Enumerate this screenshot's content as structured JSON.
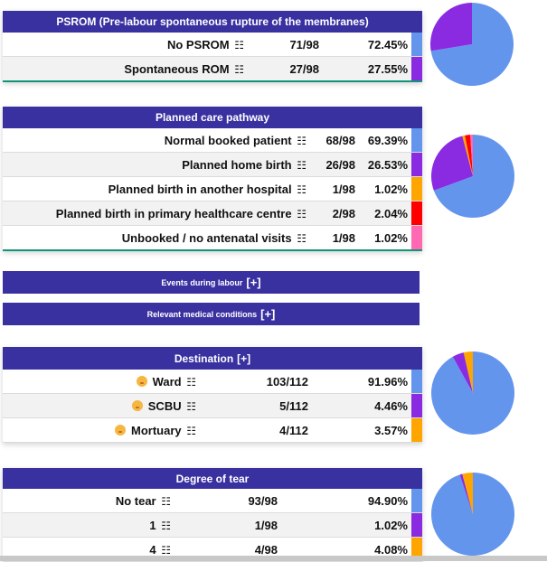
{
  "sections": {
    "psrom": {
      "title": "PSROM (Pre-labour spontaneous rupture of the membranes)",
      "rows": [
        {
          "label": "No PSROM",
          "count": "71/98",
          "percent": "72.45%",
          "color": "#6495ed",
          "value": 72.45
        },
        {
          "label": "Spontaneous ROM",
          "count": "27/98",
          "percent": "27.55%",
          "color": "#8a2be2",
          "value": 27.55
        }
      ]
    },
    "care_pathway": {
      "title": "Planned care pathway",
      "rows": [
        {
          "label": "Normal booked patient",
          "count": "68/98",
          "percent": "69.39%",
          "color": "#6495ed",
          "value": 69.39
        },
        {
          "label": "Planned home birth",
          "count": "26/98",
          "percent": "26.53%",
          "color": "#8a2be2",
          "value": 26.53
        },
        {
          "label": "Planned birth in another hospital",
          "count": "1/98",
          "percent": "1.02%",
          "color": "#ffa500",
          "value": 1.02
        },
        {
          "label": "Planned birth in primary healthcare centre",
          "count": "2/98",
          "percent": "2.04%",
          "color": "#ff0000",
          "value": 2.04
        },
        {
          "label": "Unbooked / no antenatal visits",
          "count": "1/98",
          "percent": "1.02%",
          "color": "#ff69b4",
          "value": 1.02
        }
      ]
    },
    "events_labour": {
      "title": "Events during labour",
      "toggle": "[+]"
    },
    "medical_conditions": {
      "title": "Relevant medical conditions",
      "toggle": "[+]"
    },
    "destination": {
      "title": "Destination",
      "toggle": "[+]",
      "rows": [
        {
          "label": "Ward",
          "icon": "baby-face-icon",
          "count": "103/112",
          "percent": "91.96%",
          "color": "#6495ed",
          "value": 91.96
        },
        {
          "label": "SCBU",
          "icon": "baby-face-icon",
          "count": "5/112",
          "percent": "4.46%",
          "color": "#8a2be2",
          "value": 4.46
        },
        {
          "label": "Mortuary",
          "icon": "baby-face-icon",
          "count": "4/112",
          "percent": "3.57%",
          "color": "#ffa500",
          "value": 3.57
        }
      ]
    },
    "tear": {
      "title": "Degree of tear",
      "rows": [
        {
          "label": "No tear",
          "count": "93/98",
          "percent": "94.90%",
          "color": "#6495ed",
          "value": 94.9
        },
        {
          "label": "1",
          "count": "1/98",
          "percent": "1.02%",
          "color": "#8a2be2",
          "value": 1.02
        },
        {
          "label": "4",
          "count": "4/98",
          "percent": "4.08%",
          "color": "#ffa500",
          "value": 4.08
        }
      ]
    }
  },
  "icons": {
    "list": "☷"
  }
}
